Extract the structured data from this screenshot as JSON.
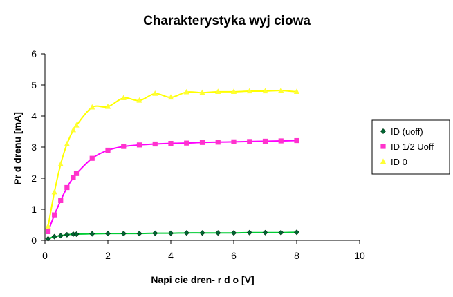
{
  "colors": {
    "background": "#ffffff",
    "axis": "#000000",
    "series_uoff": "#00cc33",
    "series_half": "#ff00ff",
    "series_zero": "#ffff00",
    "marker_uoff": "#006633",
    "marker_half": "#ff33cc",
    "marker_zero": "#ffff33"
  },
  "chart_data": {
    "type": "scatter",
    "title": "Charakterystyka wyj  ciowa",
    "xlabel": "Napi  cie dren-  r  d o [V]",
    "ylabel": "Pr  d drenu [mA]",
    "xlim": [
      0,
      10
    ],
    "ylim": [
      0,
      6
    ],
    "x_ticks": [
      0,
      2,
      4,
      6,
      8,
      10
    ],
    "y_ticks": [
      0,
      1,
      2,
      3,
      4,
      5,
      6
    ],
    "grid": false,
    "legend_position": "right",
    "series": [
      {
        "name": "ID (uoff)",
        "marker": "diamond",
        "color": "#00cc33",
        "marker_color": "#006633",
        "points": [
          [
            0.1,
            0.05
          ],
          [
            0.3,
            0.12
          ],
          [
            0.5,
            0.15
          ],
          [
            0.7,
            0.18
          ],
          [
            0.9,
            0.2
          ],
          [
            1.0,
            0.2
          ],
          [
            1.5,
            0.21
          ],
          [
            2.0,
            0.22
          ],
          [
            2.5,
            0.22
          ],
          [
            3.0,
            0.22
          ],
          [
            3.5,
            0.23
          ],
          [
            4.0,
            0.23
          ],
          [
            4.5,
            0.24
          ],
          [
            5.0,
            0.24
          ],
          [
            5.5,
            0.24
          ],
          [
            6.0,
            0.24
          ],
          [
            6.5,
            0.25
          ],
          [
            7.0,
            0.25
          ],
          [
            7.5,
            0.25
          ],
          [
            8.0,
            0.26
          ]
        ]
      },
      {
        "name": "ID 1/2 Uoff",
        "marker": "square",
        "color": "#ff00ff",
        "marker_color": "#ff33cc",
        "points": [
          [
            0.1,
            0.28
          ],
          [
            0.3,
            0.82
          ],
          [
            0.5,
            1.28
          ],
          [
            0.7,
            1.7
          ],
          [
            0.9,
            2.02
          ],
          [
            1.0,
            2.15
          ],
          [
            1.5,
            2.64
          ],
          [
            2.0,
            2.9
          ],
          [
            2.5,
            3.02
          ],
          [
            3.0,
            3.07
          ],
          [
            3.5,
            3.1
          ],
          [
            4.0,
            3.12
          ],
          [
            4.5,
            3.13
          ],
          [
            5.0,
            3.15
          ],
          [
            5.5,
            3.16
          ],
          [
            6.0,
            3.17
          ],
          [
            6.5,
            3.18
          ],
          [
            7.0,
            3.19
          ],
          [
            7.5,
            3.2
          ],
          [
            8.0,
            3.21
          ]
        ]
      },
      {
        "name": "ID     0",
        "marker": "triangle",
        "color": "#ffff00",
        "marker_color": "#ffff33",
        "points": [
          [
            0.1,
            0.45
          ],
          [
            0.3,
            1.55
          ],
          [
            0.5,
            2.45
          ],
          [
            0.7,
            3.1
          ],
          [
            0.9,
            3.55
          ],
          [
            1.0,
            3.7
          ],
          [
            1.5,
            4.28
          ],
          [
            2.0,
            4.3
          ],
          [
            2.5,
            4.58
          ],
          [
            3.0,
            4.5
          ],
          [
            3.5,
            4.72
          ],
          [
            4.0,
            4.6
          ],
          [
            4.5,
            4.77
          ],
          [
            5.0,
            4.75
          ],
          [
            5.5,
            4.78
          ],
          [
            6.0,
            4.78
          ],
          [
            6.5,
            4.8
          ],
          [
            7.0,
            4.8
          ],
          [
            7.5,
            4.82
          ],
          [
            8.0,
            4.78
          ]
        ]
      }
    ]
  }
}
